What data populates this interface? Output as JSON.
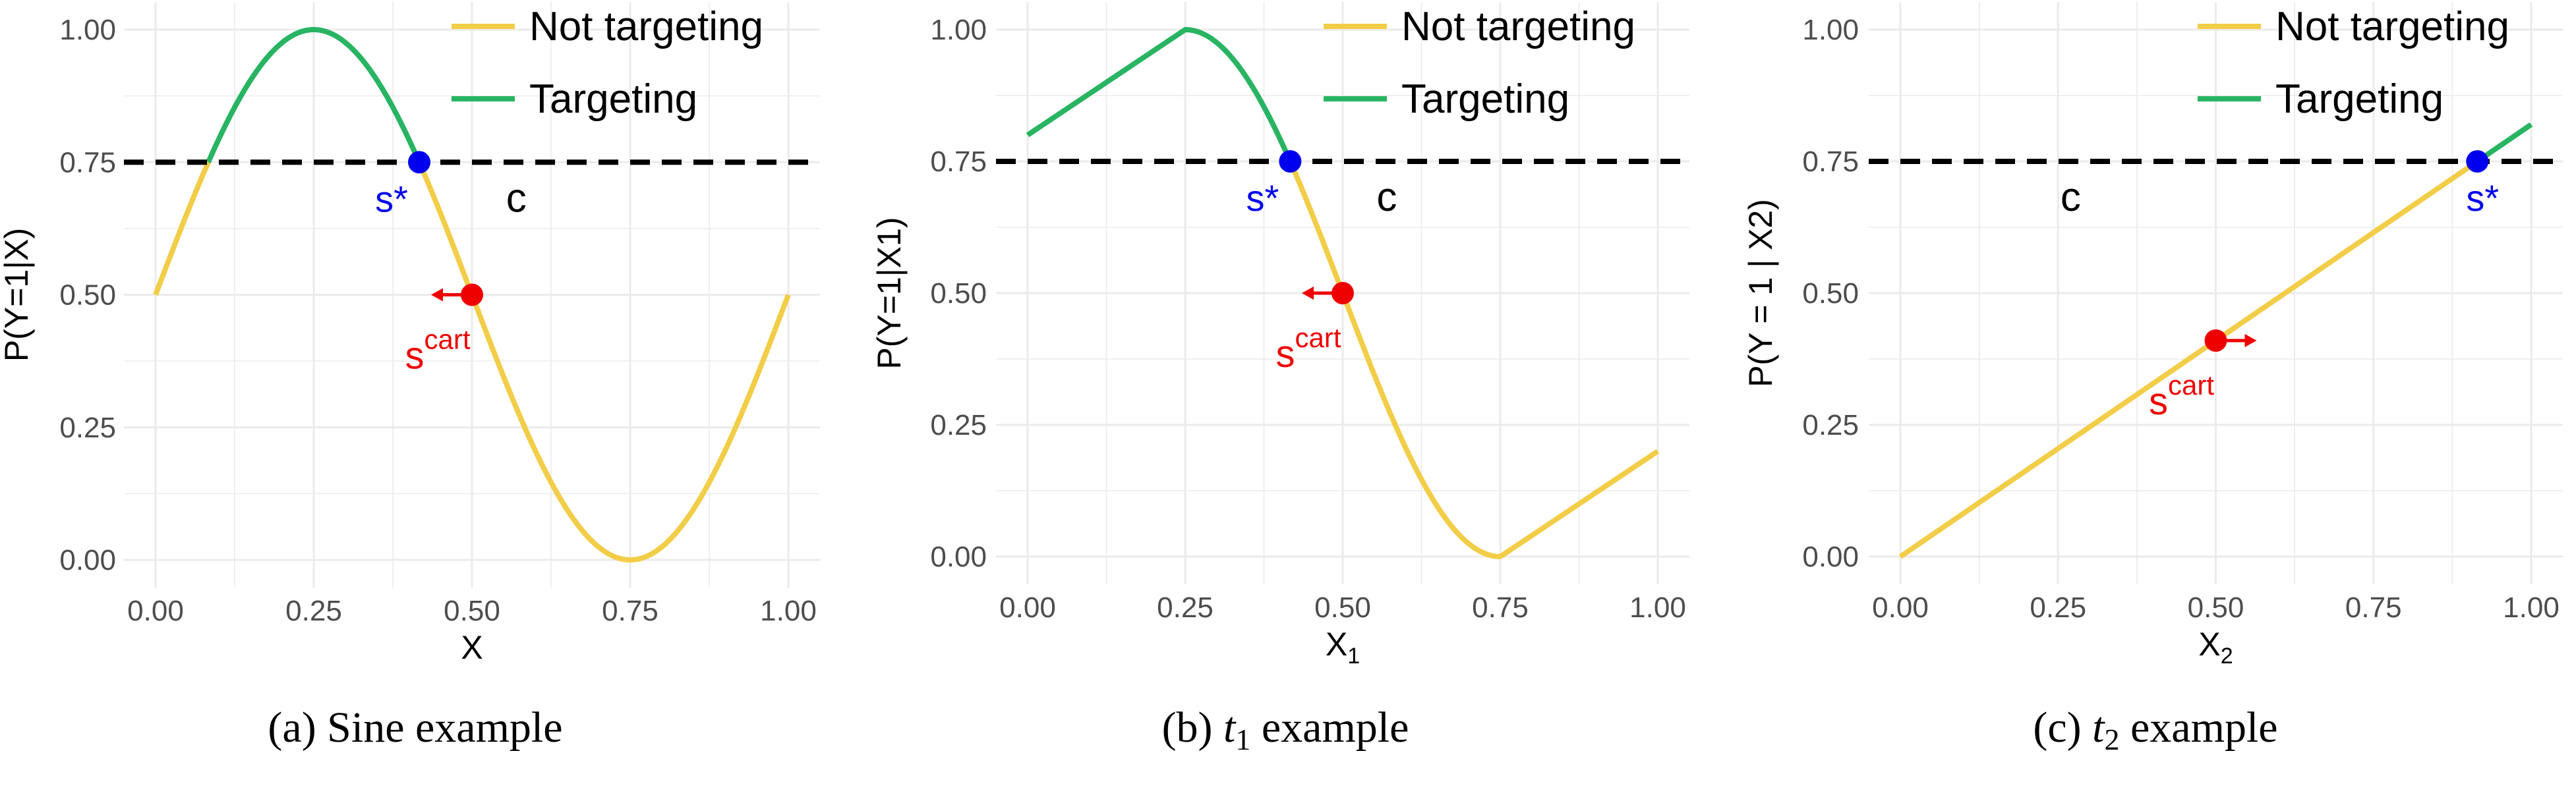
{
  "colors": {
    "not_targeting": "#f2cd48",
    "targeting": "#28b463",
    "threshold": "#000000",
    "s_star": "#0000ee",
    "s_cart": "#ee0000",
    "grid": "#ebebeb"
  },
  "legend": {
    "entries": [
      "Not targeting",
      "Targeting"
    ],
    "placement": "top-right"
  },
  "chart_data": [
    {
      "type": "line",
      "caption": "(a) Sine example",
      "xlabel": "X",
      "ylabel": "P(Y=1|X)",
      "xlim": [
        0,
        1
      ],
      "ylim": [
        0,
        1
      ],
      "x_ticks": [
        0,
        0.25,
        0.5,
        0.75,
        1
      ],
      "y_ticks": [
        0,
        0.25,
        0.5,
        0.75,
        1
      ],
      "x_tick_labels": [
        "0.00",
        "0.25",
        "0.50",
        "0.75",
        "1.00"
      ],
      "y_tick_labels": [
        "0.00",
        "0.25",
        "0.50",
        "0.75",
        "1.00"
      ],
      "grid": true,
      "function": "0.5 + 0.5*sin(2*pi*x)",
      "series": [
        {
          "name": "Not targeting",
          "segments": [
            [
              0,
              0.0833
            ],
            [
              0.4167,
              1
            ]
          ]
        },
        {
          "name": "Targeting",
          "segments": [
            [
              0.0833,
              0.4167
            ]
          ]
        }
      ],
      "threshold": {
        "y": 0.75,
        "label": "c",
        "label_x": 0.57
      },
      "s_star": {
        "label": "s*",
        "x": 0.4167,
        "y": 0.75,
        "label_side": "left"
      },
      "s_cart": {
        "base": "s",
        "sup": "cart",
        "x": 0.5,
        "y": 0.5,
        "arrow": "left",
        "label_side": "left"
      }
    },
    {
      "type": "line",
      "caption_prefix": "(b) ",
      "caption_var": "t",
      "caption_sub": "1",
      "caption_suffix": " example",
      "xlabel_base": "X",
      "xlabel_sub": "1",
      "ylabel": "P(Y=1|X1)",
      "xlim": [
        0,
        1
      ],
      "ylim": [
        0,
        1
      ],
      "x_ticks": [
        0,
        0.25,
        0.5,
        0.75,
        1
      ],
      "y_ticks": [
        0,
        0.25,
        0.5,
        0.75,
        1
      ],
      "x_tick_labels": [
        "0.00",
        "0.25",
        "0.50",
        "0.75",
        "1.00"
      ],
      "y_tick_labels": [
        "0.00",
        "0.25",
        "0.50",
        "0.75",
        "1.00"
      ],
      "grid": true,
      "function": "piecewise: 0.8+0.8x (x<0.25); 0.5+0.5sin(2pi x) (0.25-0.75); 0.8(x-0.75) (x>0.75)",
      "series": [
        {
          "name": "Not targeting",
          "segments": [
            [
              0.4167,
              1
            ]
          ]
        },
        {
          "name": "Targeting",
          "segments": [
            [
              0,
              0.4167
            ]
          ]
        }
      ],
      "threshold": {
        "y": 0.75,
        "label": "c",
        "label_x": 0.57
      },
      "s_star": {
        "label": "s*",
        "x": 0.4167,
        "y": 0.75,
        "label_side": "left"
      },
      "s_cart": {
        "base": "s",
        "sup": "cart",
        "x": 0.5,
        "y": 0.5,
        "arrow": "left",
        "label_side": "left"
      }
    },
    {
      "type": "line",
      "caption_prefix": "(c) ",
      "caption_var": "t",
      "caption_sub": "2",
      "caption_suffix": " example",
      "xlabel_base": "X",
      "xlabel_sub": "2",
      "ylabel": "P(Y = 1 | X2)",
      "xlim": [
        0,
        1
      ],
      "ylim": [
        0,
        1
      ],
      "x_ticks": [
        0,
        0.25,
        0.5,
        0.75,
        1
      ],
      "y_ticks": [
        0,
        0.25,
        0.5,
        0.75,
        1
      ],
      "x_tick_labels": [
        "0.00",
        "0.25",
        "0.50",
        "0.75",
        "1.00"
      ],
      "y_tick_labels": [
        "0.00",
        "0.25",
        "0.50",
        "0.75",
        "1.00"
      ],
      "grid": true,
      "function": "0.82*x",
      "series": [
        {
          "name": "Not targeting",
          "segments": [
            [
              0,
              0.9146
            ]
          ]
        },
        {
          "name": "Targeting",
          "segments": [
            [
              0.9146,
              1
            ]
          ]
        }
      ],
      "threshold": {
        "y": 0.75,
        "label": "c",
        "label_x": 0.27
      },
      "s_star": {
        "label": "s*",
        "x": 0.9146,
        "y": 0.75,
        "label_side": "center"
      },
      "s_cart": {
        "base": "s",
        "sup": "cart",
        "x": 0.5,
        "y": 0.41,
        "arrow": "right",
        "label_side": "left"
      }
    }
  ]
}
